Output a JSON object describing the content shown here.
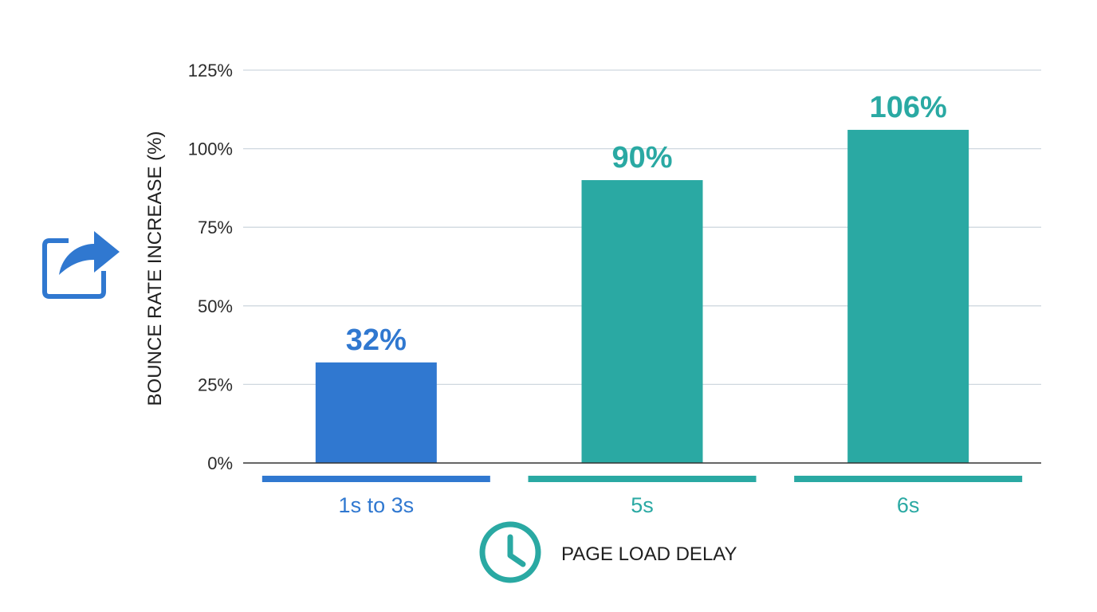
{
  "chart_data": {
    "type": "bar",
    "categories": [
      "1s to 3s",
      "5s",
      "6s"
    ],
    "values": [
      32,
      90,
      106
    ],
    "value_labels": [
      "32%",
      "90%",
      "106%"
    ],
    "bar_colors": [
      "#3078d0",
      "#2aa9a3",
      "#2aa9a3"
    ],
    "ylabel": "BOUNCE RATE INCREASE (%)",
    "xlabel": "PAGE LOAD DELAY",
    "ylim": [
      0,
      125
    ],
    "yticks": [
      0,
      25,
      50,
      75,
      100,
      125
    ],
    "ytick_labels": [
      "0%",
      "25%",
      "50%",
      "75%",
      "100%",
      "125%"
    ],
    "grid": true,
    "icons": {
      "y_axis": "share-arrow-icon",
      "x_axis": "clock-icon"
    }
  },
  "colors": {
    "grid": "#cfd8df",
    "axis": "#333333",
    "blue": "#3078d0",
    "teal": "#2aa9a3"
  }
}
